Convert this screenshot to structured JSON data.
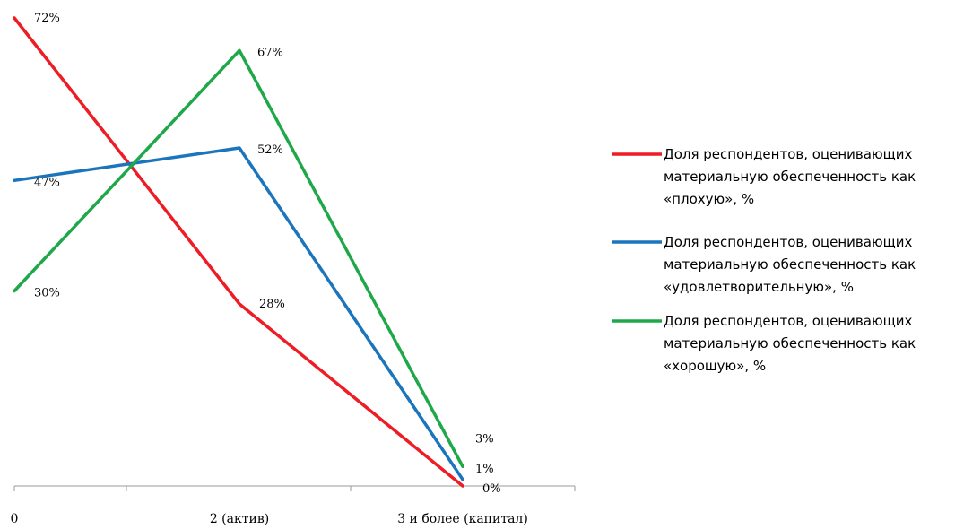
{
  "chart_data": {
    "type": "line",
    "title": "",
    "xlabel": "",
    "ylabel": "",
    "categories": [
      "0",
      "2 (актив)",
      "3 и более (капитал)"
    ],
    "ylim": [
      0,
      72
    ],
    "grid": false,
    "legend_position": "right",
    "series": [
      {
        "name": "Доля респондентов, оценивающих материальную обеспеченность как «плохую», %",
        "name_lines": [
          "Доля респондентов, оценивающих",
          "материальную обеспеченность как",
          "«плохую», %"
        ],
        "color": "#ee1c25",
        "values": [
          72,
          28,
          0
        ],
        "labels": [
          "72%",
          "28%",
          "0%"
        ]
      },
      {
        "name": "Доля респондентов, оценивающих материальную обеспеченность как «удовлетворительную», %",
        "name_lines": [
          "Доля респондентов, оценивающих",
          "материальную обеспеченность как",
          "«удовлетворительную», %"
        ],
        "color": "#1b75bc",
        "values": [
          47,
          52,
          1
        ],
        "labels": [
          "47%",
          "52%",
          "1%"
        ]
      },
      {
        "name": "Доля респондентов, оценивающих материальную обеспеченность как «хорошую», %",
        "name_lines": [
          "Доля респондентов, оценивающих",
          "материальную обеспеченность как",
          "«хорошую», %"
        ],
        "color": "#1fa84a",
        "values": [
          30,
          67,
          3
        ],
        "labels": [
          "30%",
          "67%",
          "3%"
        ]
      }
    ]
  }
}
